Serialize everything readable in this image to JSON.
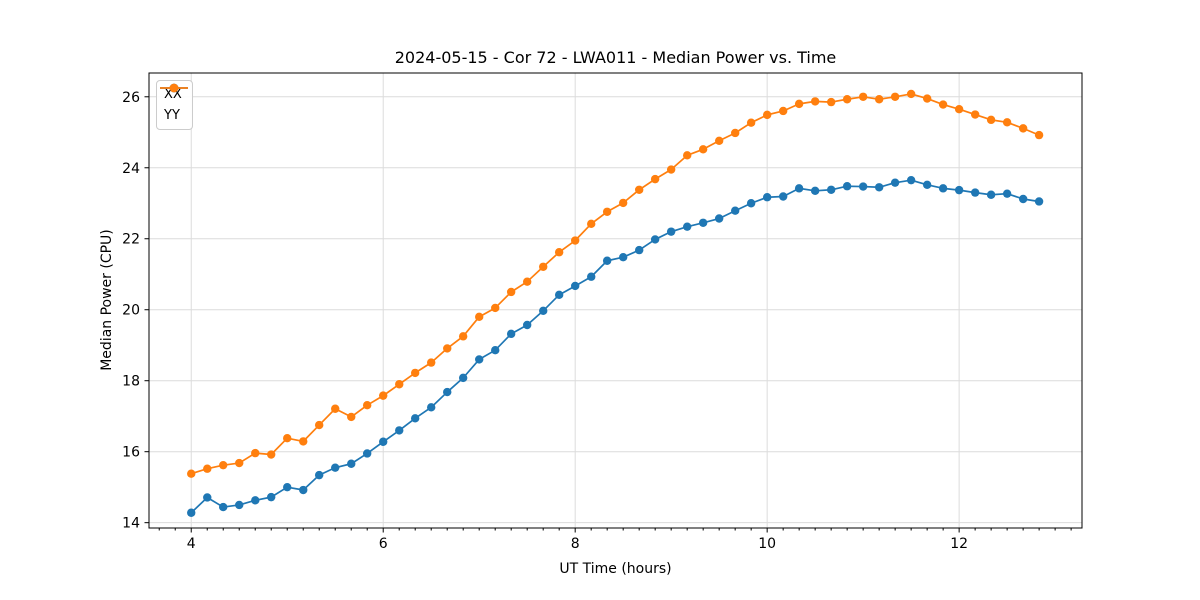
{
  "chart_data": {
    "type": "line",
    "title": "2024-05-15 - Cor 72 - LWA011 - Median Power vs. Time",
    "xlabel": "UT Time (hours)",
    "ylabel": "Median Power (CPU)",
    "xlim": [
      3.56,
      13.28
    ],
    "ylim": [
      13.85,
      26.67
    ],
    "grid": true,
    "legend_position": "upper left",
    "marker": "circle",
    "x_ticks": {
      "values": [
        4,
        6,
        8,
        10,
        12
      ],
      "labels": [
        "4",
        "6",
        "8",
        "10",
        "12"
      ],
      "minor_step_hours": 0.16667
    },
    "y_ticks": {
      "values": [
        14,
        16,
        18,
        20,
        22,
        24,
        26
      ],
      "labels": [
        "14",
        "16",
        "18",
        "20",
        "22",
        "24",
        "26"
      ]
    },
    "x": [
      4.0,
      4.167,
      4.333,
      4.5,
      4.667,
      4.833,
      5.0,
      5.167,
      5.333,
      5.5,
      5.667,
      5.833,
      6.0,
      6.167,
      6.333,
      6.5,
      6.667,
      6.833,
      7.0,
      7.167,
      7.333,
      7.5,
      7.667,
      7.833,
      8.0,
      8.167,
      8.333,
      8.5,
      8.667,
      8.833,
      9.0,
      9.167,
      9.333,
      9.5,
      9.667,
      9.833,
      10.0,
      10.167,
      10.333,
      10.5,
      10.667,
      10.833,
      11.0,
      11.167,
      11.333,
      11.5,
      11.667,
      11.833,
      12.0,
      12.167,
      12.333,
      12.5,
      12.667,
      12.833
    ],
    "series": [
      {
        "name": "XX",
        "color": "#1f77b4",
        "values": [
          14.28,
          14.71,
          14.44,
          14.5,
          14.63,
          14.72,
          15.0,
          14.92,
          15.34,
          15.55,
          15.66,
          15.95,
          16.28,
          16.6,
          16.94,
          17.25,
          17.68,
          18.08,
          18.6,
          18.86,
          19.32,
          19.57,
          19.97,
          20.42,
          20.67,
          20.93,
          21.38,
          21.48,
          21.68,
          21.98,
          22.2,
          22.34,
          22.45,
          22.57,
          22.79,
          23.0,
          23.17,
          23.19,
          23.42,
          23.35,
          23.38,
          23.48,
          23.47,
          23.45,
          23.58,
          23.65,
          23.52,
          23.42,
          23.37,
          23.3,
          23.24,
          23.27,
          23.12,
          23.05
        ]
      },
      {
        "name": "YY",
        "color": "#ff7f0e",
        "values": [
          15.38,
          15.52,
          15.62,
          15.68,
          15.96,
          15.92,
          16.38,
          16.29,
          16.75,
          17.21,
          16.98,
          17.31,
          17.58,
          17.9,
          18.22,
          18.51,
          18.91,
          19.25,
          19.8,
          20.05,
          20.5,
          20.79,
          21.21,
          21.62,
          21.95,
          22.42,
          22.76,
          23.01,
          23.38,
          23.68,
          23.95,
          24.35,
          24.52,
          24.76,
          24.98,
          25.27,
          25.49,
          25.6,
          25.8,
          25.87,
          25.85,
          25.93,
          26.0,
          25.93,
          26.0,
          26.08,
          25.95,
          25.78,
          25.65,
          25.5,
          25.35,
          25.28,
          25.11,
          24.92
        ]
      }
    ]
  },
  "colors": {
    "grid": "#dcdcdc",
    "spine": "#000000",
    "tick": "#000000",
    "text": "#000000",
    "background": "#ffffff"
  }
}
